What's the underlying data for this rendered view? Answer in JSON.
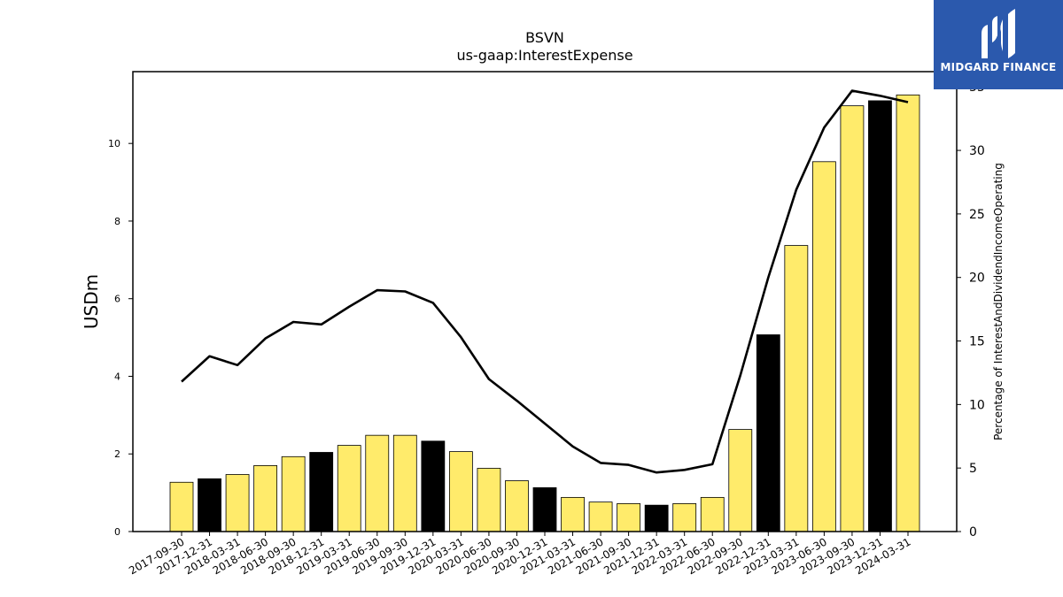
{
  "chart_data": {
    "type": "bar+line",
    "title": "BSVN",
    "subtitle": "us-gaap:InterestExpense",
    "ylabel": "USDm",
    "y2label": "Percentage of InterestAndDividendIncomeOperating",
    "ylim": [
      0,
      11.85
    ],
    "y2lim": [
      0,
      36.2
    ],
    "yticks": [
      0,
      2,
      4,
      6,
      8,
      10
    ],
    "y2ticks": [
      0,
      5,
      10,
      15,
      20,
      25,
      30,
      35
    ],
    "grid": false,
    "categories": [
      "2017-09-30",
      "2017-12-31",
      "2018-03-31",
      "2018-06-30",
      "2018-09-30",
      "2018-12-31",
      "2019-03-31",
      "2019-06-30",
      "2019-09-30",
      "2019-12-31",
      "2020-03-31",
      "2020-06-30",
      "2020-09-30",
      "2020-12-31",
      "2021-03-31",
      "2021-06-30",
      "2021-09-30",
      "2021-12-31",
      "2022-03-31",
      "2022-06-30",
      "2022-09-30",
      "2022-12-31",
      "2023-03-31",
      "2023-06-30",
      "2023-09-30",
      "2023-12-31",
      "2024-03-31"
    ],
    "series": [
      {
        "type": "bar",
        "values": [
          1.27,
          1.36,
          1.47,
          1.7,
          1.93,
          2.04,
          2.22,
          2.48,
          2.48,
          2.33,
          2.06,
          1.63,
          1.31,
          1.13,
          0.88,
          0.76,
          0.72,
          0.68,
          0.72,
          0.88,
          2.63,
          5.07,
          7.37,
          9.53,
          10.97,
          11.1,
          11.25
        ],
        "colors": [
          "#ffeb6b",
          "#000000",
          "#ffeb6b",
          "#ffeb6b",
          "#ffeb6b",
          "#000000",
          "#ffeb6b",
          "#ffeb6b",
          "#ffeb6b",
          "#000000",
          "#ffeb6b",
          "#ffeb6b",
          "#ffeb6b",
          "#000000",
          "#ffeb6b",
          "#ffeb6b",
          "#ffeb6b",
          "#000000",
          "#ffeb6b",
          "#ffeb6b",
          "#ffeb6b",
          "#000000",
          "#ffeb6b",
          "#ffeb6b",
          "#ffeb6b",
          "#000000",
          "#ffeb6b"
        ]
      },
      {
        "type": "line",
        "axis": "right",
        "color": "#000000",
        "values": [
          11.8,
          13.8,
          13.1,
          15.2,
          16.5,
          16.3,
          17.7,
          19.0,
          18.9,
          18.0,
          15.3,
          12.0,
          10.3,
          8.5,
          6.7,
          5.4,
          5.25,
          4.65,
          4.85,
          5.3,
          12.3,
          20.0,
          26.9,
          31.8,
          34.7,
          34.3,
          33.8
        ]
      }
    ]
  },
  "logo": {
    "text": "MIDGARD FINANCE",
    "background": "#2b59ad"
  }
}
